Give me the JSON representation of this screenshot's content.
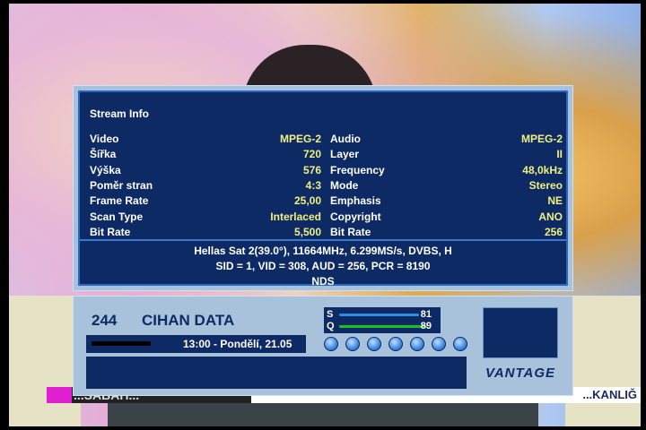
{
  "stream_info": {
    "title": "Stream Info",
    "video": [
      {
        "label": "Video",
        "value": "MPEG-2"
      },
      {
        "label": "Šířka",
        "value": "720"
      },
      {
        "label": "Výška",
        "value": "576"
      },
      {
        "label": "Poměr stran",
        "value": "4:3"
      },
      {
        "label": "Frame Rate",
        "value": "25,00"
      },
      {
        "label": "Scan Type",
        "value": "Interlaced"
      },
      {
        "label": "Bit Rate",
        "value": "5,500"
      }
    ],
    "audio": [
      {
        "label": "Audio",
        "value": "MPEG-2"
      },
      {
        "label": "Layer",
        "value": "II"
      },
      {
        "label": "Frequency",
        "value": "48,0kHz"
      },
      {
        "label": "Mode",
        "value": "Stereo"
      },
      {
        "label": "Emphasis",
        "value": "NE"
      },
      {
        "label": "Copyright",
        "value": "ANO"
      },
      {
        "label": "Bit Rate",
        "value": "256"
      }
    ],
    "transponder": "Hellas Sat 2(39.0°), 11664MHz, 6.299MS/s, DVBS, H",
    "pids": "SID = 1, VID = 308, AUD = 256, PCR = 8190",
    "ca_system": "NDS"
  },
  "channel_bar": {
    "number": "244",
    "name": "CIHAN DATA",
    "time": "13:00 - Pondělí, 21.05",
    "signal": {
      "s_label": "S",
      "s_value": "81",
      "q_label": "Q",
      "q_value": "89",
      "s_color": "#2a90e0",
      "q_color": "#20c020"
    },
    "icons": [
      "hd-icon",
      "subtitle-icon",
      "music-icon",
      "teletext-icon",
      "scrambled-icon",
      "info-icon",
      "epg-icon"
    ],
    "logo": "VANTAGE"
  },
  "ticker": {
    "left": "...SABAH...",
    "right": "...KANLIĞ"
  }
}
